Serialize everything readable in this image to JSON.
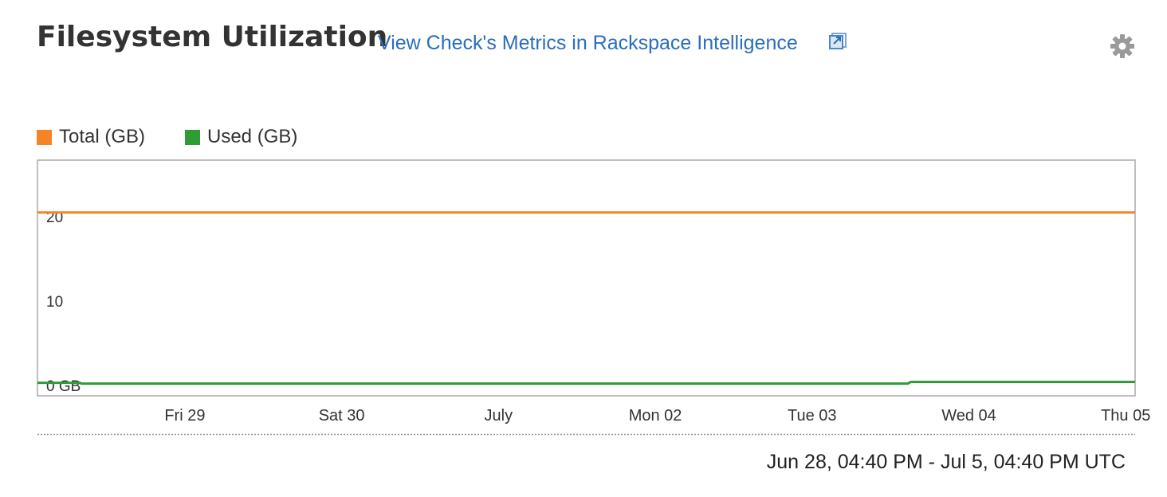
{
  "header": {
    "title": "Filesystem Utilization",
    "metrics_link": "View Check's Metrics in Rackspace Intelligence",
    "external_icon": "external-link-icon",
    "settings_icon": "gear-icon"
  },
  "colors": {
    "total": "#f58426",
    "used": "#2e9d36",
    "link": "#2a6ebb"
  },
  "chart_data": {
    "type": "line",
    "title": "Filesystem Utilization",
    "xlabel": "",
    "ylabel": "",
    "x_ticks": [
      "Fri 29",
      "Sat 30",
      "July",
      "Mon 02",
      "Tue 03",
      "Wed 04",
      "Thu 05"
    ],
    "y_ticks": [
      {
        "value": 0,
        "label": "0 GB"
      },
      {
        "value": 10,
        "label": "10"
      },
      {
        "value": 20,
        "label": "20"
      }
    ],
    "ylim": [
      0,
      27.9
    ],
    "xlim_days": [
      -0.94,
      6.06
    ],
    "legend_position": "top-left",
    "grid": false,
    "series": [
      {
        "name": "Total (GB)",
        "color": "#f58426",
        "points": [
          [
            -0.94,
            21.7
          ],
          [
            6.06,
            21.7
          ]
        ]
      },
      {
        "name": "Used (GB)",
        "color": "#2e9d36",
        "points": [
          [
            -0.94,
            1.55
          ],
          [
            -0.67,
            1.55
          ],
          [
            -0.66,
            1.45
          ],
          [
            4.61,
            1.45
          ],
          [
            4.63,
            1.65
          ],
          [
            6.06,
            1.65
          ]
        ]
      }
    ]
  },
  "time_range": "Jun 28, 04:40 PM - Jul 5, 04:40 PM UTC"
}
